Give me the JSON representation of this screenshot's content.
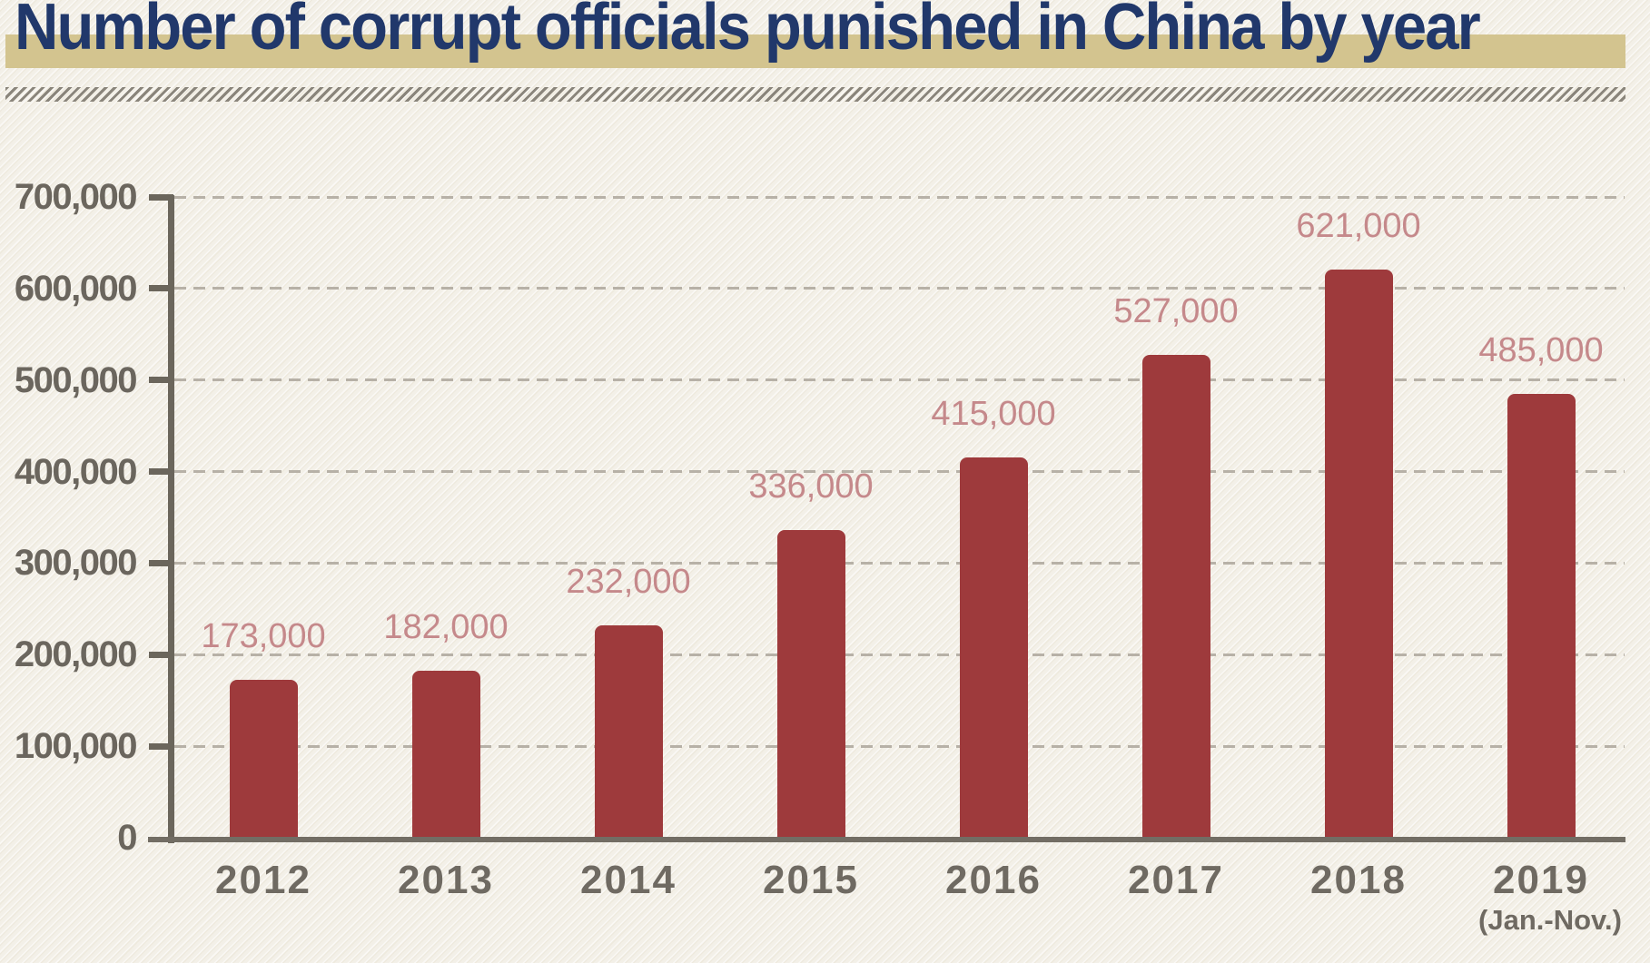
{
  "header": {
    "title": "Number of corrupt officials punished in China by year"
  },
  "colors": {
    "background": "#f3f0e8",
    "title_text": "#21386b",
    "title_highlight": "#d3c48f",
    "divider_hatch": "#8a857b",
    "bar": "#9e3a3c",
    "value_label": "#c5898b",
    "axis": "#6b665c",
    "x_axis": "#726d64",
    "gridline": "#b7b1a7",
    "tick_label": "#6b665e",
    "year_label": "#6f6a62"
  },
  "chart_data": {
    "type": "bar",
    "title": "Number of corrupt officials punished in China by year",
    "categories": [
      "2012",
      "2013",
      "2014",
      "2015",
      "2016",
      "2017",
      "2018",
      "2019"
    ],
    "category_sublabels": [
      "",
      "",
      "",
      "",
      "",
      "",
      "",
      "(Jan.-Nov.)"
    ],
    "values": [
      173000,
      182000,
      232000,
      336000,
      415000,
      527000,
      621000,
      485000
    ],
    "value_labels": [
      "173,000",
      "182,000",
      "232,000",
      "336,000",
      "415,000",
      "527,000",
      "621,000",
      "485,000"
    ],
    "xlabel": "",
    "ylabel": "",
    "ylim": [
      0,
      700000
    ],
    "ytick_interval": 100000,
    "ytick_labels": [
      "0",
      "100,000",
      "200,000",
      "300,000",
      "400,000",
      "500,000",
      "600,000",
      "700,000"
    ],
    "grid": "horizontal-dashed",
    "legend": false
  }
}
